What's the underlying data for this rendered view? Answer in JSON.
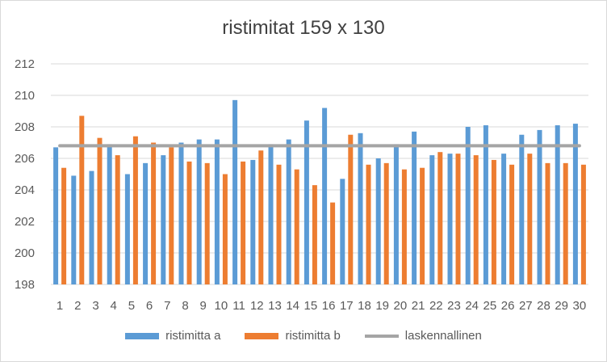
{
  "chart_data": {
    "type": "bar",
    "title": "ristimitat 159 x 130",
    "xlabel": "",
    "ylabel": "",
    "ylim": [
      198,
      212
    ],
    "yticks": [
      198,
      200,
      202,
      204,
      206,
      208,
      210,
      212
    ],
    "categories": [
      "1",
      "2",
      "3",
      "4",
      "5",
      "6",
      "7",
      "8",
      "9",
      "10",
      "11",
      "12",
      "13",
      "14",
      "15",
      "16",
      "17",
      "18",
      "19",
      "20",
      "21",
      "22",
      "23",
      "24",
      "25",
      "26",
      "27",
      "28",
      "29",
      "30"
    ],
    "series": [
      {
        "name": "ristimitta a",
        "type": "bar",
        "color": "#5b9bd5",
        "values": [
          206.7,
          204.9,
          205.2,
          206.9,
          205.0,
          205.7,
          206.2,
          207.0,
          207.2,
          207.2,
          209.7,
          205.9,
          206.9,
          207.2,
          208.4,
          209.2,
          204.7,
          207.6,
          206.0,
          206.9,
          207.7,
          206.2,
          206.3,
          208.0,
          208.1,
          206.3,
          207.5,
          207.8,
          208.1,
          208.2
        ]
      },
      {
        "name": "ristimitta b",
        "type": "bar",
        "color": "#ed7d31",
        "values": [
          205.4,
          208.7,
          207.3,
          206.2,
          207.4,
          207.0,
          206.7,
          205.8,
          205.7,
          205.0,
          205.8,
          206.5,
          205.6,
          205.3,
          204.3,
          203.2,
          207.5,
          205.6,
          205.7,
          205.3,
          205.4,
          206.4,
          206.3,
          206.2,
          205.9,
          205.6,
          206.3,
          205.7,
          205.7,
          205.6
        ]
      },
      {
        "name": "laskennallinen",
        "type": "line",
        "color": "#a5a5a5",
        "values": [
          206.8,
          206.8,
          206.8,
          206.8,
          206.8,
          206.8,
          206.8,
          206.8,
          206.8,
          206.8,
          206.8,
          206.8,
          206.8,
          206.8,
          206.8,
          206.8,
          206.8,
          206.8,
          206.8,
          206.8,
          206.8,
          206.8,
          206.8,
          206.8,
          206.8,
          206.8,
          206.8,
          206.8,
          206.8,
          206.8
        ]
      }
    ],
    "grid": true,
    "legend": "bottom"
  }
}
